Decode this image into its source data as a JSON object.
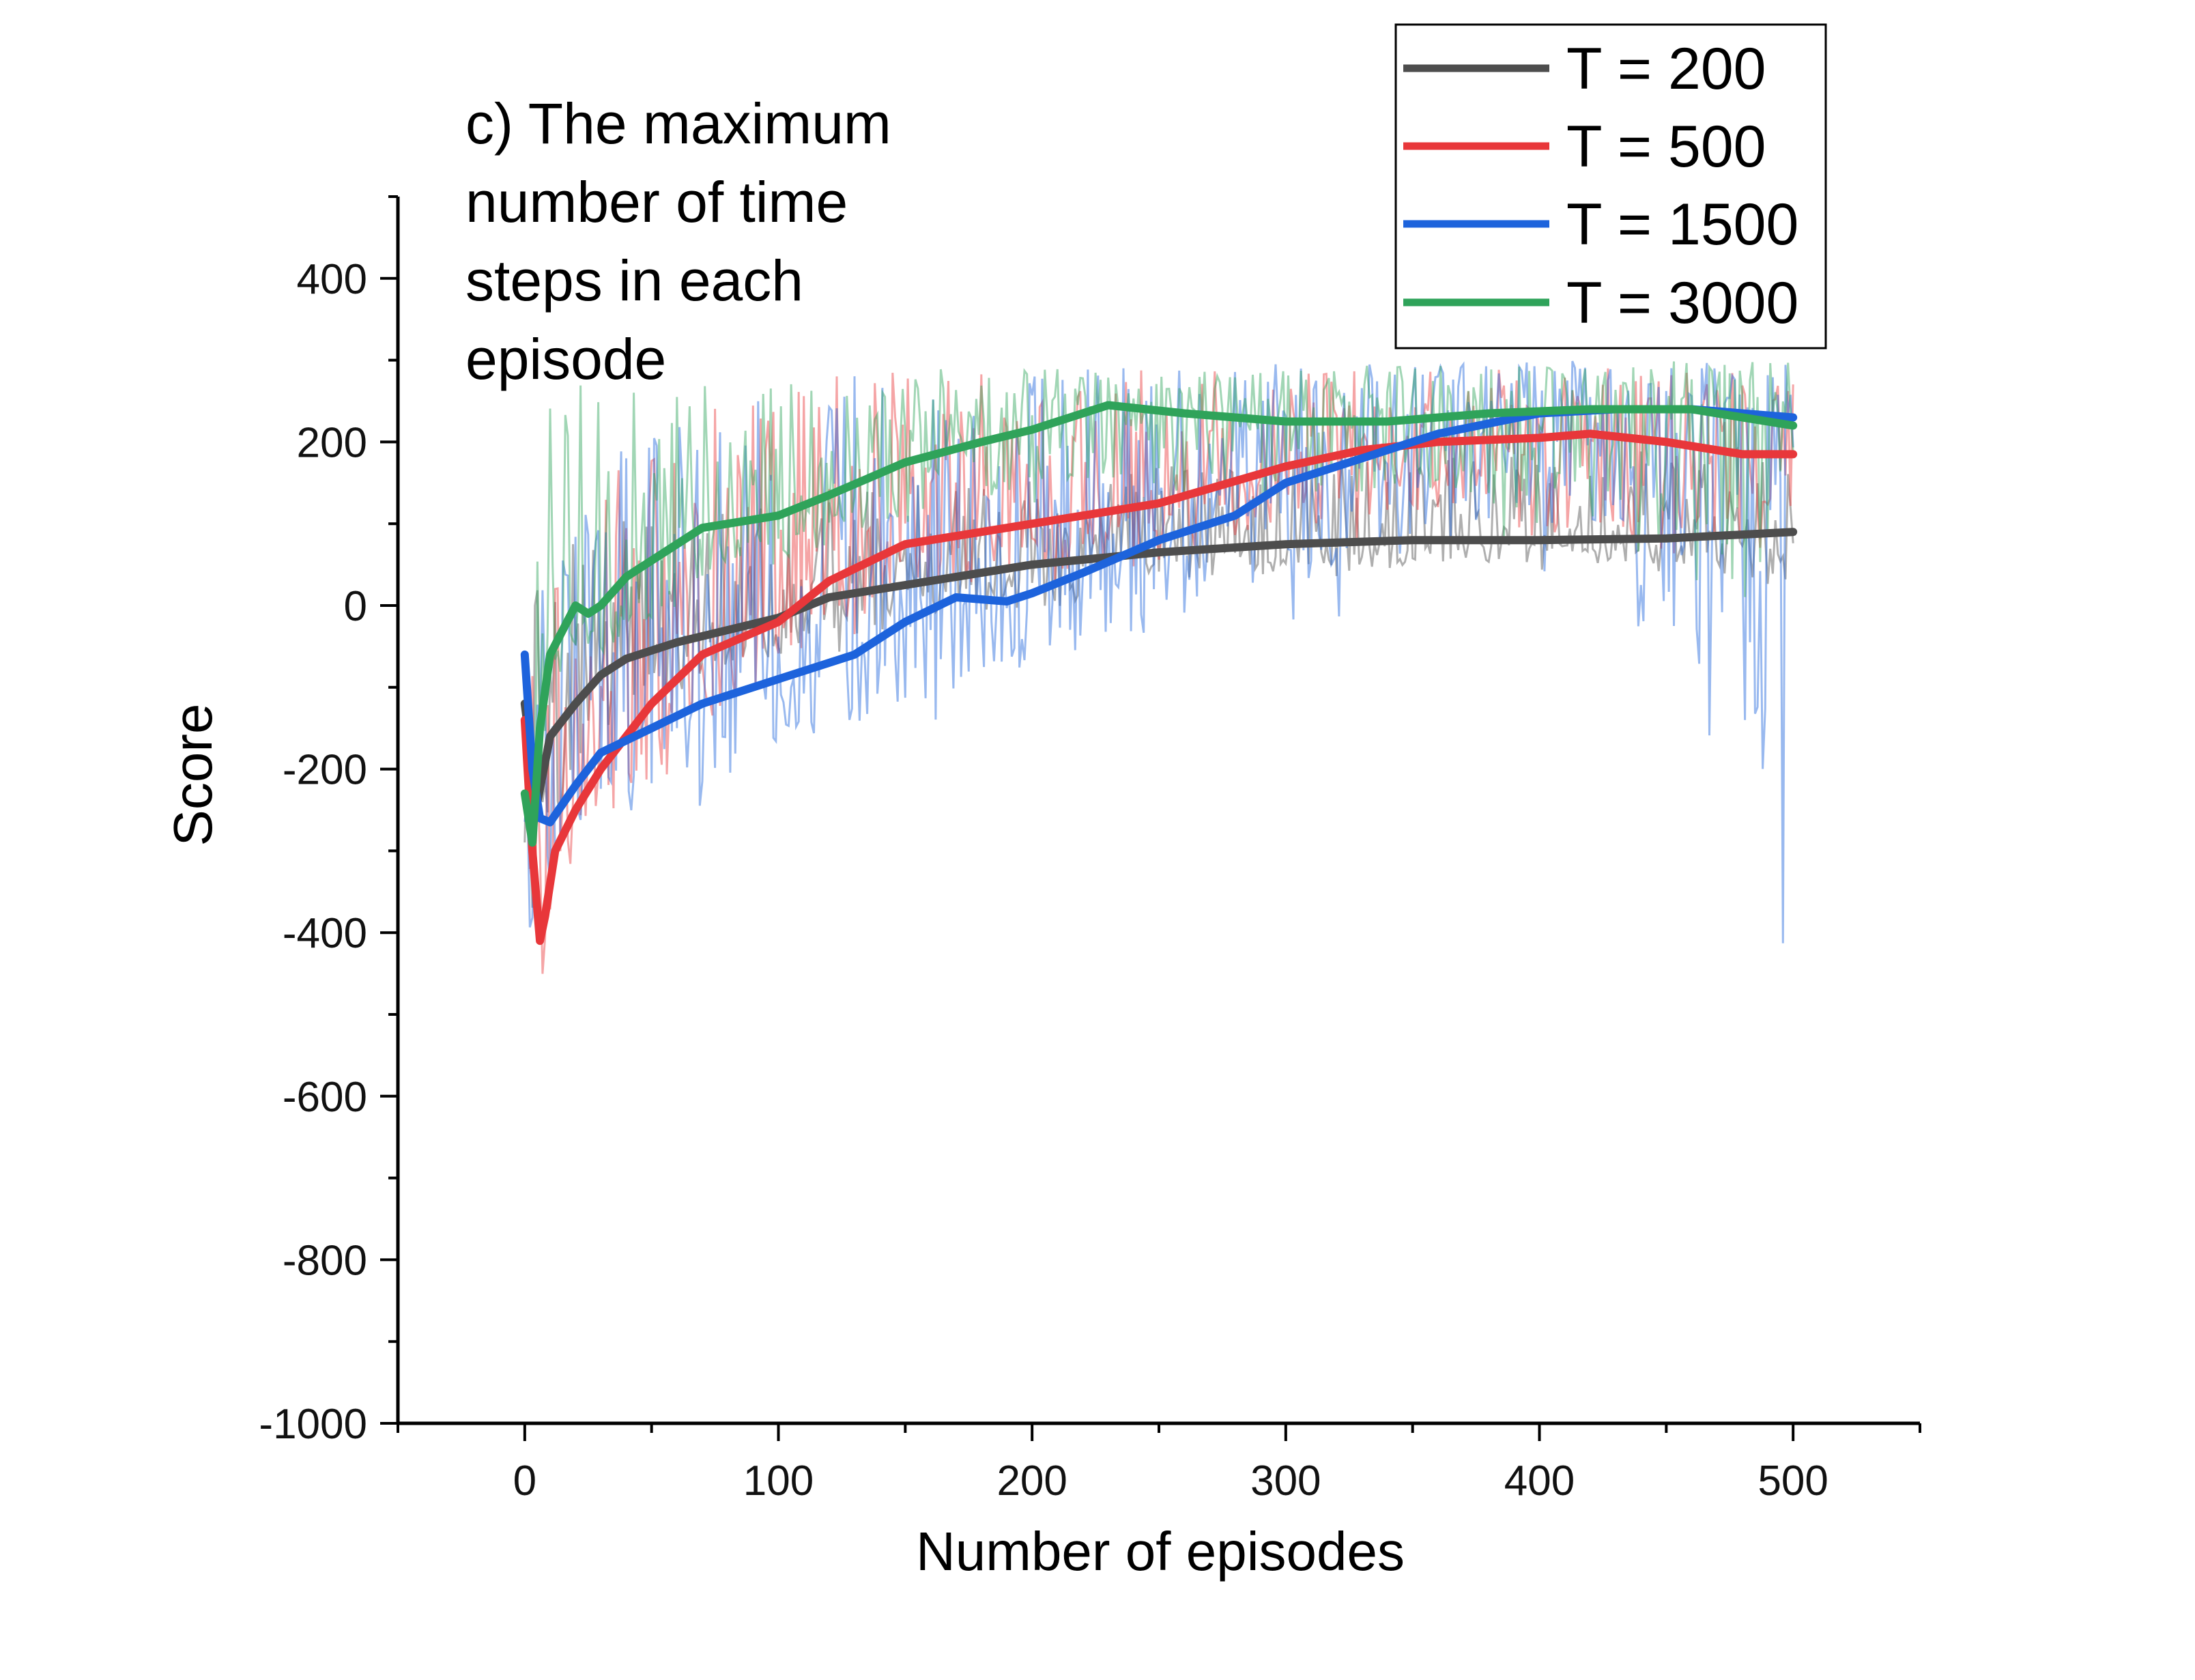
{
  "chart_data": {
    "type": "line",
    "title": "",
    "annotation": [
      "c) The maximum",
      "number of time",
      "steps in each",
      "episode"
    ],
    "xlabel": "Number of episodes",
    "ylabel": "Score",
    "xlim": [
      -50,
      550
    ],
    "ylim": [
      -1000,
      500
    ],
    "xticks": [
      0,
      100,
      200,
      300,
      400,
      500
    ],
    "yticks": [
      -1000,
      -800,
      -600,
      -400,
      -200,
      0,
      200,
      400
    ],
    "grid": false,
    "legend_position": "top-right",
    "series": [
      {
        "name": "T = 200",
        "color": "#4d4d4d",
        "smoothed": {
          "x": [
            0,
            5,
            10,
            15,
            20,
            30,
            40,
            60,
            80,
            100,
            120,
            150,
            200,
            250,
            300,
            350,
            400,
            450,
            500
          ],
          "y": [
            -120,
            -240,
            -160,
            -140,
            -120,
            -85,
            -65,
            -45,
            -30,
            -15,
            10,
            25,
            50,
            65,
            75,
            80,
            80,
            82,
            90
          ]
        },
        "raw": {
          "band_low": [
            -600,
            -350,
            -200,
            -150,
            -100,
            -60,
            -40,
            -20,
            20,
            30,
            40,
            0
          ],
          "band_high": [
            0,
            50,
            100,
            110,
            120,
            150,
            150,
            160,
            180,
            180,
            190,
            190
          ]
        }
      },
      {
        "name": "T = 500",
        "color": "#e8373a",
        "smoothed": {
          "x": [
            0,
            3,
            6,
            8,
            12,
            20,
            30,
            50,
            70,
            100,
            120,
            150,
            200,
            250,
            300,
            330,
            360,
            400,
            420,
            450,
            480,
            500
          ],
          "y": [
            -140,
            -300,
            -410,
            -380,
            -300,
            -250,
            -200,
            -120,
            -60,
            -20,
            30,
            75,
            100,
            125,
            170,
            190,
            200,
            205,
            210,
            200,
            185,
            185
          ]
        },
        "raw": {
          "band_low": [
            -700,
            -400,
            -300,
            -250,
            -150,
            -50,
            0,
            20,
            50,
            80,
            20,
            0
          ],
          "band_high": [
            0,
            80,
            150,
            230,
            260,
            280,
            290,
            290,
            290,
            290,
            290,
            290
          ]
        }
      },
      {
        "name": "T = 1500",
        "color": "#1d63dc",
        "smoothed": {
          "x": [
            0,
            3,
            6,
            10,
            20,
            30,
            50,
            70,
            90,
            110,
            130,
            150,
            170,
            190,
            200,
            220,
            250,
            280,
            300,
            330,
            360,
            400,
            430,
            460,
            500
          ],
          "y": [
            -60,
            -200,
            -260,
            -265,
            -220,
            -180,
            -150,
            -120,
            -100,
            -80,
            -60,
            -20,
            10,
            5,
            15,
            40,
            80,
            110,
            150,
            180,
            210,
            235,
            240,
            240,
            230
          ]
        },
        "raw": {
          "band_low": [
            -500,
            -400,
            -350,
            -300,
            -250,
            -200,
            -150,
            -100,
            -50,
            0,
            50,
            -440
          ],
          "band_high": [
            -40,
            50,
            150,
            230,
            270,
            280,
            290,
            300,
            300,
            300,
            300,
            300
          ]
        }
      },
      {
        "name": "T = 3000",
        "color": "#2fa35a",
        "smoothed": {
          "x": [
            0,
            3,
            6,
            10,
            15,
            20,
            25,
            30,
            40,
            50,
            70,
            100,
            120,
            150,
            180,
            200,
            230,
            260,
            300,
            340,
            380,
            420,
            460,
            500
          ],
          "y": [
            -230,
            -290,
            -150,
            -60,
            -30,
            0,
            -10,
            0,
            35,
            55,
            95,
            110,
            135,
            175,
            200,
            215,
            245,
            235,
            225,
            225,
            235,
            240,
            240,
            220
          ]
        },
        "raw": {
          "band_low": [
            -300,
            -150,
            -100,
            -50,
            0,
            50,
            100,
            120,
            80,
            100,
            50,
            -80
          ],
          "band_high": [
            260,
            270,
            280,
            285,
            285,
            290,
            290,
            290,
            290,
            295,
            300,
            300
          ]
        }
      }
    ]
  }
}
